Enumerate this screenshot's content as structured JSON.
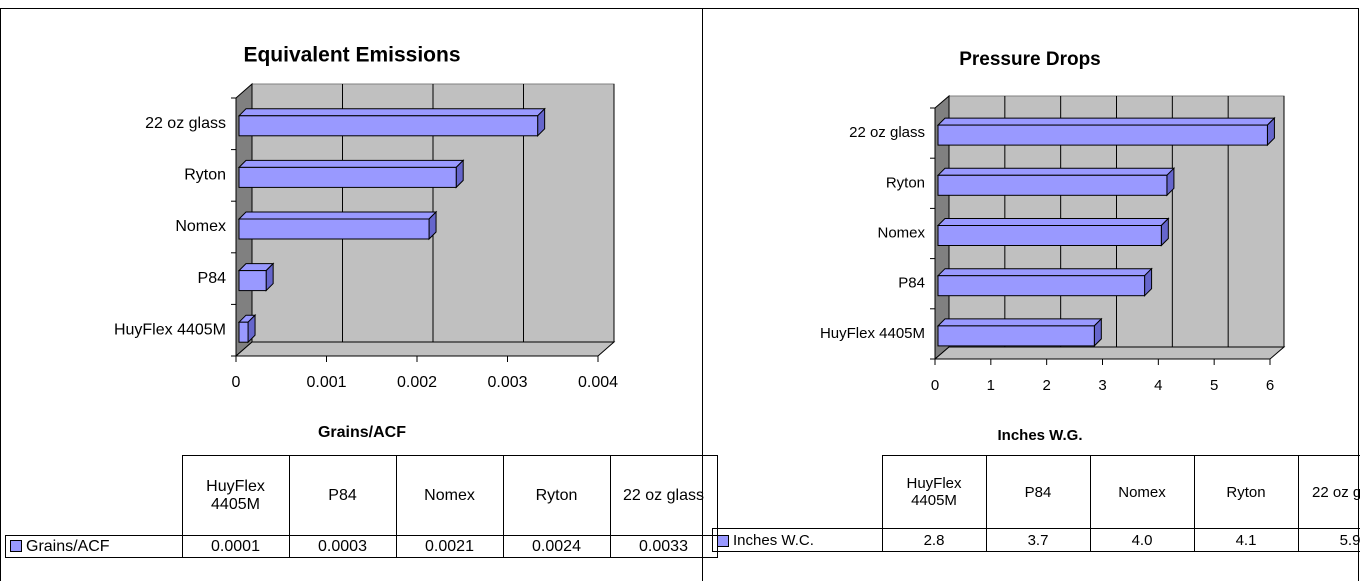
{
  "chart_data": [
    {
      "type": "bar",
      "title": "Equivalent Emissions",
      "x_label": "Grains/ACF",
      "categories": [
        "HuyFlex 4405M",
        "P84",
        "Nomex",
        "Ryton",
        "22 oz glass"
      ],
      "series": [
        {
          "name": "Grains/ACF",
          "color": "#9999ff",
          "values": [
            0.0001,
            0.0003,
            0.0021,
            0.0024,
            0.0033
          ]
        }
      ],
      "xlim": [
        0,
        0.004
      ],
      "xticks": [
        0,
        0.001,
        0.002,
        0.003,
        0.004
      ],
      "grid": true
    },
    {
      "type": "bar",
      "title": "Pressure Drops",
      "x_label": "Inches W.G.",
      "categories": [
        "HuyFlex 4405M",
        "P84",
        "Nomex",
        "Ryton",
        "22 oz glass"
      ],
      "series": [
        {
          "name": "Inches W.C.",
          "color": "#9999ff",
          "values": [
            2.8,
            3.7,
            4.0,
            4.1,
            5.9
          ],
          "value_labels": [
            "2.8",
            "3.7",
            "4.0",
            "4.1",
            "5.9"
          ]
        }
      ],
      "xlim": [
        0,
        6
      ],
      "xticks": [
        0,
        1,
        2,
        3,
        4,
        5,
        6
      ],
      "grid": true
    }
  ]
}
